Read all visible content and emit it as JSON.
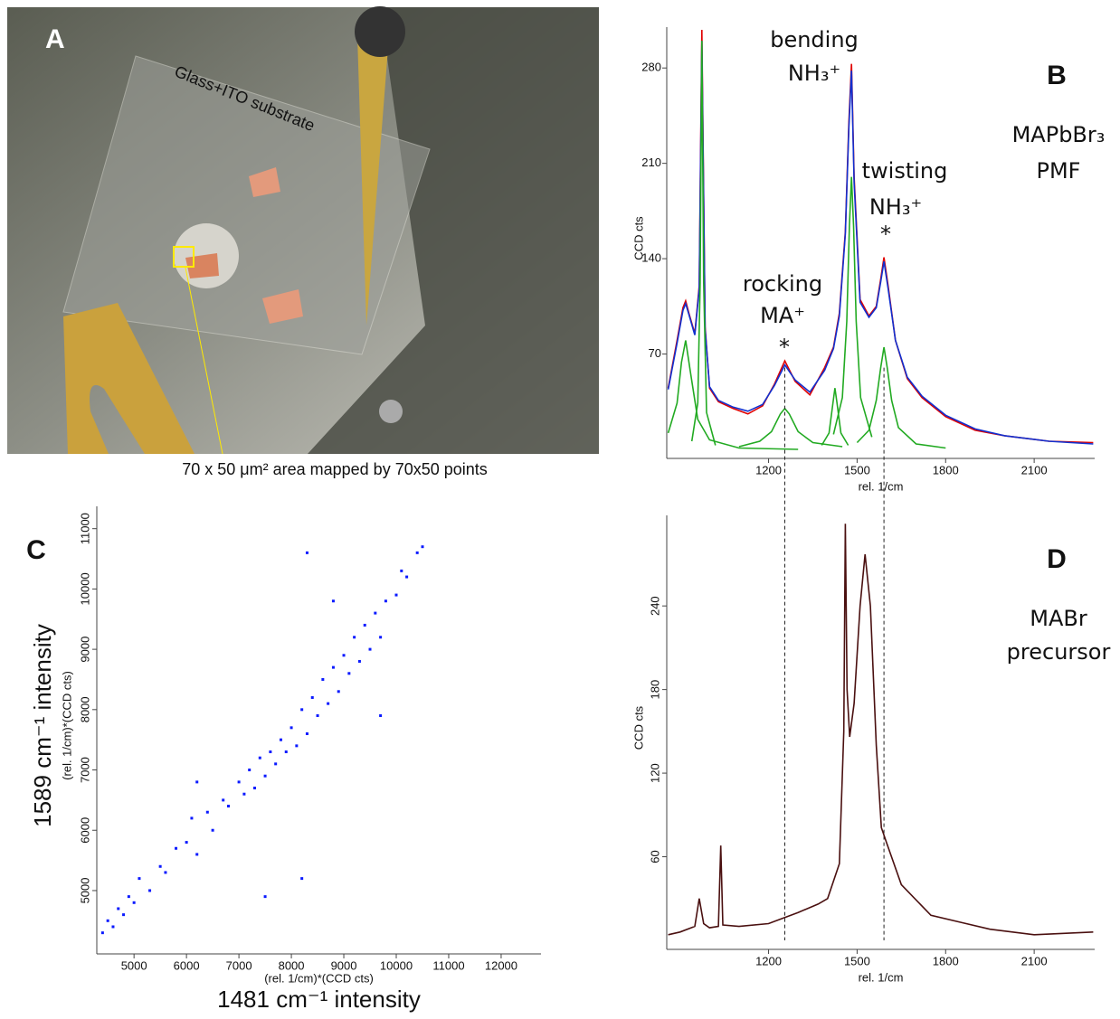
{
  "photo": {
    "label": "A",
    "substrate": "Glass+ITO substrate",
    "caption": "70 x 50 μm² area mapped by 70x50 points"
  },
  "chart_data": [
    {
      "type": "line",
      "panel": "B",
      "sample": "MAPbBr₃",
      "method": "PMF",
      "x_label": "rel. 1/cm",
      "y_label": "CCD cts",
      "annotations": [
        "bending",
        "NH₃⁺",
        "rocking",
        "MA⁺",
        "*",
        "twisting",
        "NH₃⁺",
        "*"
      ],
      "xlim": [
        855,
        2305
      ],
      "ylim": [
        0,
        310
      ],
      "xticks": [
        1200,
        1500,
        1800,
        2100
      ],
      "yticks": [
        70,
        140,
        210,
        280
      ],
      "vlines": [
        1255,
        1591
      ],
      "x": [
        860,
        890,
        910,
        919,
        930,
        950,
        965,
        974,
        985,
        1000,
        1030,
        1080,
        1130,
        1180,
        1220,
        1255,
        1290,
        1340,
        1390,
        1420,
        1440,
        1460,
        1472,
        1481,
        1490,
        1510,
        1540,
        1565,
        1580,
        1591,
        1605,
        1630,
        1670,
        1720,
        1800,
        1900,
        2000,
        2150,
        2300
      ],
      "series": [
        {
          "color": "#e00000",
          "values": [
            45,
            80,
            104,
            109,
            100,
            85,
            120,
            308,
            90,
            45,
            35,
            30,
            26,
            32,
            48,
            65,
            50,
            40,
            60,
            75,
            100,
            160,
            240,
            283,
            200,
            110,
            98,
            105,
            125,
            141,
            120,
            80,
            52,
            38,
            24,
            14,
            10,
            6,
            5
          ]
        },
        {
          "color": "#1030d0",
          "values": [
            44,
            78,
            102,
            107,
            99,
            84,
            118,
            300,
            88,
            46,
            36,
            31,
            28,
            33,
            47,
            62,
            51,
            42,
            58,
            74,
            98,
            158,
            236,
            278,
            196,
            108,
            97,
            104,
            123,
            138,
            118,
            80,
            53,
            39,
            25,
            15,
            10,
            6,
            4
          ]
        },
        {
          "color": "#22aa22",
          "x": [
            860,
            890,
            905,
            919,
            935,
            960,
            1000,
            1100,
            1300
          ],
          "values": [
            12,
            34,
            64,
            80,
            57,
            22,
            7,
            1,
            0
          ]
        },
        {
          "color": "#22aa22",
          "x": [
            940,
            960,
            968,
            974,
            980,
            990,
            1020
          ],
          "values": [
            6,
            34,
            122,
            300,
            122,
            27,
            3
          ]
        },
        {
          "color": "#22aa22",
          "x": [
            1100,
            1170,
            1210,
            1240,
            1255,
            1270,
            1300,
            1350,
            1450
          ],
          "values": [
            2,
            6,
            13,
            26,
            30,
            26,
            13,
            5,
            2
          ]
        },
        {
          "color": "#22aa22",
          "x": [
            1380,
            1405,
            1418,
            1425,
            1432,
            1445,
            1470
          ],
          "values": [
            3,
            12,
            34,
            45,
            34,
            12,
            3
          ]
        },
        {
          "color": "#22aa22",
          "x": [
            1420,
            1450,
            1465,
            1474,
            1481,
            1488,
            1497,
            1512,
            1550
          ],
          "values": [
            11,
            38,
            94,
            164,
            200,
            164,
            94,
            38,
            9
          ]
        },
        {
          "color": "#22aa22",
          "x": [
            1500,
            1540,
            1565,
            1580,
            1591,
            1602,
            1617,
            1640,
            1700,
            1800
          ],
          "values": [
            5,
            14,
            36,
            60,
            75,
            60,
            36,
            16,
            4,
            1
          ]
        }
      ]
    },
    {
      "type": "scatter",
      "panel": "C",
      "x_label": "1481 cm⁻¹ intensity",
      "x_unit": "(rel. 1/cm)*(CCD cts)",
      "y_label": "1589 cm⁻¹ intensity",
      "y_unit": "(rel. 1/cm)*(CCD cts)",
      "xlim": [
        4290,
        12760
      ],
      "ylim": [
        4100,
        11370
      ],
      "xticks": [
        5000,
        6000,
        7000,
        8000,
        9000,
        10000,
        11000,
        12000
      ],
      "yticks": [
        5000,
        6000,
        7000,
        8000,
        9000,
        10000,
        11000
      ],
      "series": [
        {
          "color": "#0a1aff",
          "x": [
            4400,
            4500,
            4600,
            4700,
            4800,
            4900,
            5000,
            5100,
            5300,
            5500,
            5600,
            5800,
            6000,
            6100,
            6200,
            6400,
            6500,
            6700,
            6800,
            7000,
            7100,
            7200,
            7300,
            7400,
            7500,
            7600,
            7700,
            7800,
            7900,
            8000,
            8100,
            8200,
            8300,
            8400,
            8500,
            8600,
            8700,
            8800,
            8900,
            9000,
            9100,
            9200,
            9300,
            9400,
            9500,
            9600,
            9700,
            9800,
            10000,
            10100,
            10200,
            10400,
            10500,
            8200,
            8300,
            7500,
            8800,
            9700,
            6200
          ],
          "values": [
            4300,
            4500,
            4400,
            4700,
            4600,
            4900,
            4800,
            5200,
            5000,
            5400,
            5300,
            5700,
            5800,
            6200,
            5600,
            6300,
            6000,
            6500,
            6400,
            6800,
            6600,
            7000,
            6700,
            7200,
            6900,
            7300,
            7100,
            7500,
            7300,
            7700,
            7400,
            8000,
            7600,
            8200,
            7900,
            8500,
            8100,
            8700,
            8300,
            8900,
            8600,
            9200,
            8800,
            9400,
            9000,
            9600,
            9200,
            9800,
            9900,
            10300,
            10200,
            10600,
            10700,
            5200,
            10600,
            4900,
            9800,
            7900,
            6800
          ]
        }
      ]
    },
    {
      "type": "line",
      "panel": "D",
      "sample": "MABr",
      "method": "precursor",
      "x_label": "rel. 1/cm",
      "y_label": "CCD cts",
      "xlim": [
        855,
        2305
      ],
      "ylim": [
        0,
        305
      ],
      "xticks": [
        1200,
        1500,
        1800,
        2100
      ],
      "yticks": [
        60,
        120,
        180,
        240
      ],
      "x": [
        860,
        900,
        950,
        965,
        980,
        1000,
        1030,
        1038,
        1045,
        1100,
        1200,
        1300,
        1368,
        1400,
        1440,
        1455,
        1460,
        1466,
        1475,
        1490,
        1510,
        1527,
        1545,
        1565,
        1582,
        1600,
        1650,
        1750,
        1850,
        1950,
        2100,
        2300
      ],
      "series": [
        {
          "color": "#4a1010",
          "values": [
            4,
            6,
            10,
            30,
            12,
            9,
            10,
            68,
            11,
            10,
            12,
            20,
            26,
            30,
            55,
            150,
            299,
            180,
            146,
            170,
            240,
            277,
            240,
            140,
            81,
            70,
            40,
            18,
            13,
            8,
            4,
            6
          ]
        }
      ]
    }
  ]
}
